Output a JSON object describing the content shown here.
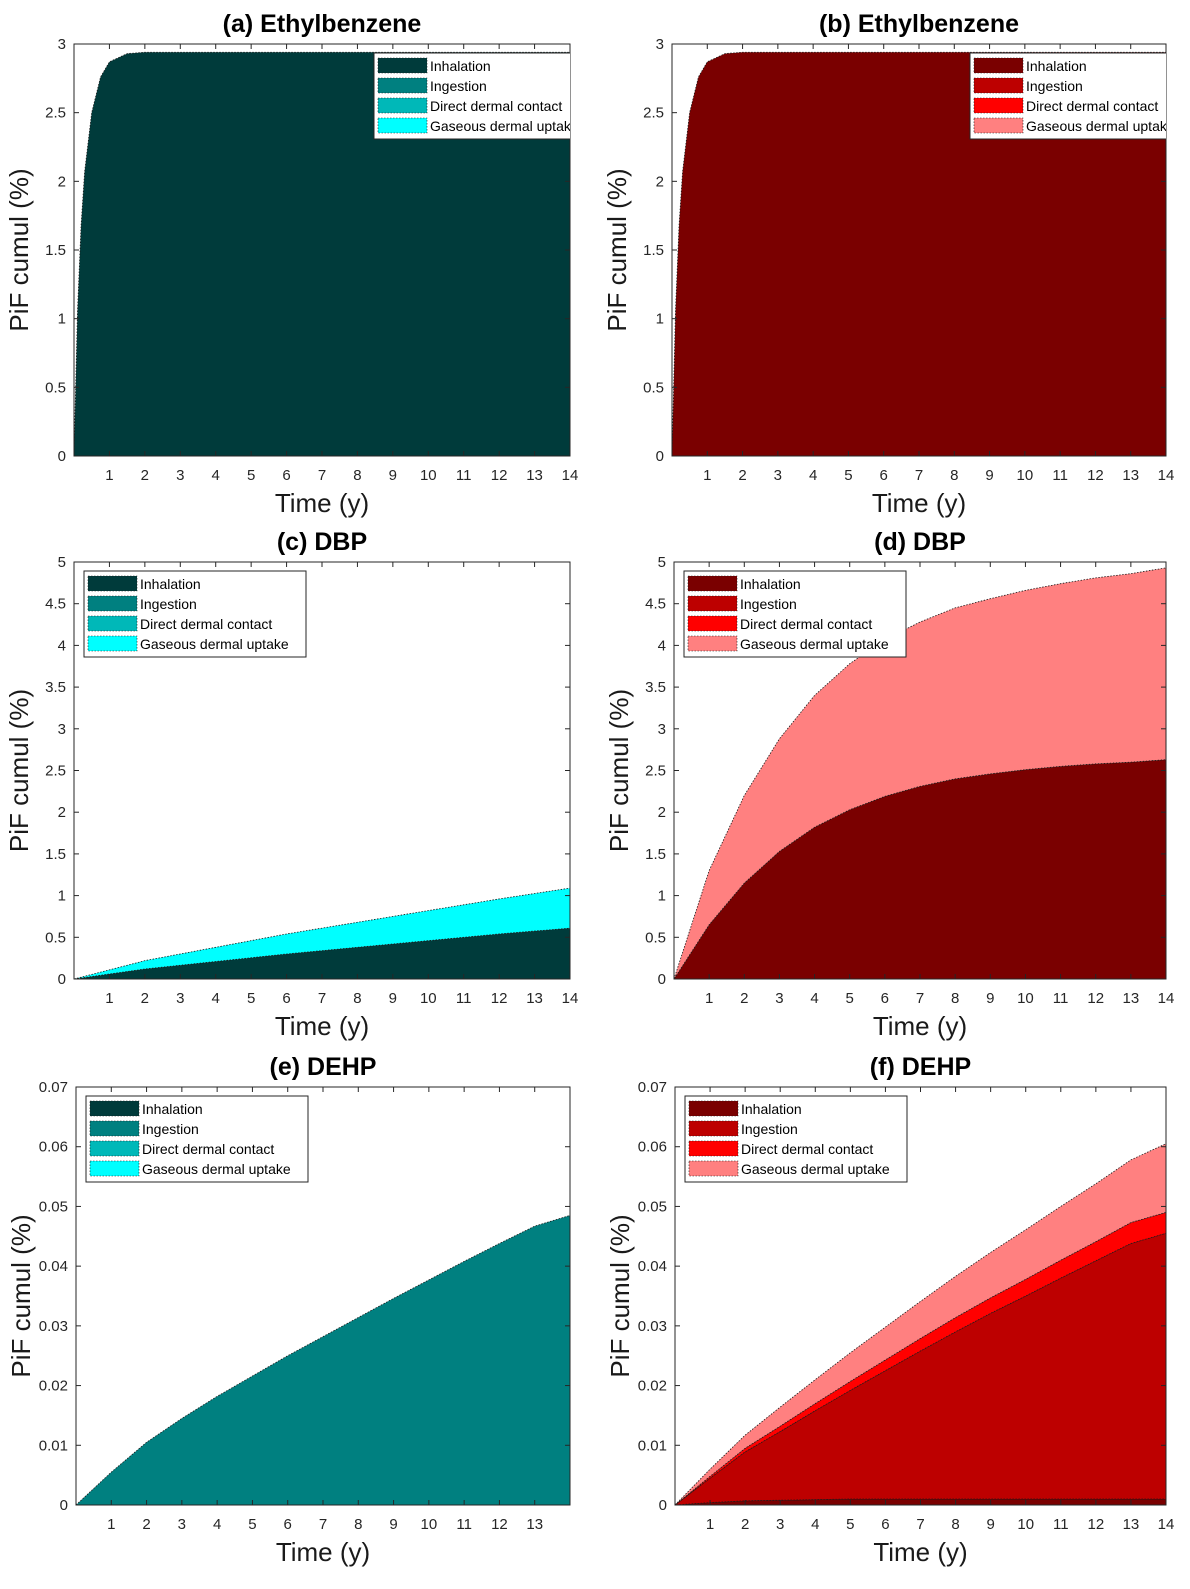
{
  "chart_data": [
    {
      "type": "area",
      "title": "(a)  Ethylbenzene",
      "xlabel": "Time (y)",
      "ylabel": "PiF cumul (%)",
      "xlim": [
        0,
        14
      ],
      "ylim": [
        0,
        3
      ],
      "xticks": [
        "1",
        "2",
        "3",
        "4",
        "5",
        "6",
        "7",
        "8",
        "9",
        "10",
        "11",
        "12",
        "13",
        "14"
      ],
      "yticks": [
        "0",
        "0.5",
        "1",
        "1.5",
        "2",
        "2.5",
        "3"
      ],
      "legend_position": "top-right",
      "stacked": true,
      "x": [
        0,
        0.1,
        0.2,
        0.3,
        0.5,
        0.75,
        1,
        1.5,
        2,
        3,
        5,
        14
      ],
      "series": [
        {
          "name": "Inhalation",
          "color": "#003b3b",
          "values": [
            0,
            1.06,
            1.68,
            2.07,
            2.5,
            2.76,
            2.87,
            2.93,
            2.94,
            2.94,
            2.94,
            2.94
          ]
        },
        {
          "name": "Ingestion",
          "color": "#008080",
          "values": [
            0,
            0,
            0,
            0,
            0,
            0,
            0,
            0,
            0,
            0,
            0,
            0
          ]
        },
        {
          "name": "Direct dermal contact",
          "color": "#00b8b8",
          "values": [
            0,
            0,
            0,
            0,
            0,
            0,
            0,
            0,
            0,
            0,
            0,
            0
          ]
        },
        {
          "name": "Gaseous dermal uptake",
          "color": "#00ffff",
          "values": [
            0,
            0,
            0,
            0,
            0,
            0,
            0,
            0,
            0,
            0,
            0,
            0
          ]
        }
      ]
    },
    {
      "type": "area",
      "title": "(b)  Ethylbenzene",
      "xlabel": "Time (y)",
      "ylabel": "PiF cumul (%)",
      "xlim": [
        0,
        14
      ],
      "ylim": [
        0,
        3
      ],
      "xticks": [
        "1",
        "2",
        "3",
        "4",
        "5",
        "6",
        "7",
        "8",
        "9",
        "10",
        "11",
        "12",
        "13",
        "14"
      ],
      "yticks": [
        "0",
        "0.5",
        "1",
        "1.5",
        "2",
        "2.5",
        "3"
      ],
      "legend_position": "top-right",
      "stacked": true,
      "x": [
        0,
        0.1,
        0.2,
        0.3,
        0.5,
        0.75,
        1,
        1.5,
        2,
        3,
        5,
        14
      ],
      "series": [
        {
          "name": "Inhalation",
          "color": "#7a0000",
          "values": [
            0,
            1.06,
            1.68,
            2.07,
            2.5,
            2.76,
            2.87,
            2.93,
            2.94,
            2.94,
            2.94,
            2.94
          ]
        },
        {
          "name": "Ingestion",
          "color": "#bd0000",
          "values": [
            0,
            0,
            0,
            0,
            0,
            0,
            0,
            0,
            0,
            0,
            0,
            0
          ]
        },
        {
          "name": "Direct dermal contact",
          "color": "#ff0000",
          "values": [
            0,
            0,
            0,
            0,
            0,
            0,
            0,
            0,
            0,
            0,
            0,
            0
          ]
        },
        {
          "name": "Gaseous dermal uptake",
          "color": "#ff8080",
          "values": [
            0,
            0,
            0,
            0,
            0,
            0,
            0,
            0,
            0,
            0,
            0,
            0
          ]
        }
      ]
    },
    {
      "type": "area",
      "title": "(c)  DBP",
      "xlabel": "Time (y)",
      "ylabel": "PiF cumul (%)",
      "xlim": [
        0,
        14
      ],
      "ylim": [
        0,
        5
      ],
      "xticks": [
        "1",
        "2",
        "3",
        "4",
        "5",
        "6",
        "7",
        "8",
        "9",
        "10",
        "11",
        "12",
        "13",
        "14"
      ],
      "yticks": [
        "0",
        "0.5",
        "1",
        "1.5",
        "2",
        "2.5",
        "3",
        "3.5",
        "4",
        "4.5",
        "5"
      ],
      "legend_position": "top-left",
      "stacked": true,
      "x": [
        0,
        2,
        4,
        6,
        8,
        10,
        12,
        14
      ],
      "series": [
        {
          "name": "Inhalation",
          "color": "#003b3b",
          "values": [
            0,
            0.12,
            0.21,
            0.3,
            0.38,
            0.46,
            0.54,
            0.61
          ]
        },
        {
          "name": "Ingestion",
          "color": "#008080",
          "values": [
            0,
            0,
            0,
            0,
            0,
            0,
            0,
            0
          ]
        },
        {
          "name": "Direct dermal contact",
          "color": "#00b8b8",
          "values": [
            0,
            0,
            0,
            0,
            0,
            0,
            0,
            0
          ]
        },
        {
          "name": "Gaseous dermal uptake",
          "color": "#00ffff",
          "values": [
            0,
            0.1,
            0.17,
            0.24,
            0.3,
            0.36,
            0.42,
            0.48
          ]
        }
      ]
    },
    {
      "type": "area",
      "title": "(d)  DBP",
      "xlabel": "Time (y)",
      "ylabel": "PiF cumul (%)",
      "xlim": [
        0,
        14
      ],
      "ylim": [
        0,
        5
      ],
      "xticks": [
        "1",
        "2",
        "3",
        "4",
        "5",
        "6",
        "7",
        "8",
        "9",
        "10",
        "11",
        "12",
        "13",
        "14"
      ],
      "yticks": [
        "0",
        "0.5",
        "1",
        "1.5",
        "2",
        "2.5",
        "3",
        "3.5",
        "4",
        "4.5",
        "5"
      ],
      "legend_position": "top-left",
      "stacked": true,
      "x": [
        0,
        1,
        2,
        3,
        4,
        5,
        6,
        7,
        8,
        9,
        10,
        11,
        12,
        13,
        14
      ],
      "series": [
        {
          "name": "Inhalation",
          "color": "#7a0000",
          "values": [
            0,
            0.65,
            1.15,
            1.53,
            1.82,
            2.03,
            2.19,
            2.31,
            2.4,
            2.46,
            2.51,
            2.55,
            2.58,
            2.6,
            2.63
          ]
        },
        {
          "name": "Ingestion",
          "color": "#bd0000",
          "values": [
            0,
            0,
            0,
            0,
            0,
            0,
            0,
            0,
            0,
            0,
            0,
            0,
            0,
            0,
            0
          ]
        },
        {
          "name": "Direct dermal contact",
          "color": "#ff0000",
          "values": [
            0,
            0,
            0,
            0,
            0,
            0,
            0,
            0,
            0,
            0,
            0,
            0,
            0,
            0,
            0
          ]
        },
        {
          "name": "Gaseous dermal uptake",
          "color": "#ff8080",
          "values": [
            0,
            0.65,
            1.05,
            1.35,
            1.58,
            1.75,
            1.88,
            1.97,
            2.05,
            2.1,
            2.15,
            2.19,
            2.23,
            2.26,
            2.3
          ]
        }
      ]
    },
    {
      "type": "area",
      "title": "(e)  DEHP",
      "xlabel": "Time (y)",
      "ylabel": "PiF cumul (%)",
      "xlim": [
        0,
        14
      ],
      "ylim": [
        0,
        0.07
      ],
      "xticks": [
        "1",
        "2",
        "3",
        "4",
        "5",
        "6",
        "7",
        "8",
        "9",
        "10",
        "11",
        "12",
        "13"
      ],
      "yticks": [
        "0",
        "0.01",
        "0.02",
        "0.03",
        "0.04",
        "0.05",
        "0.06",
        "0.07"
      ],
      "legend_position": "top-left",
      "stacked": true,
      "x": [
        0,
        1,
        2,
        3,
        4,
        5,
        6,
        7,
        8,
        9,
        10,
        11,
        12,
        13,
        14
      ],
      "series": [
        {
          "name": "Inhalation",
          "color": "#003b3b",
          "values": [
            0,
            0,
            0,
            0,
            0,
            0,
            0,
            0,
            0,
            0,
            0,
            0,
            0,
            0,
            0
          ]
        },
        {
          "name": "Ingestion",
          "color": "#008080",
          "values": [
            0,
            0.0055,
            0.0105,
            0.0145,
            0.0182,
            0.0216,
            0.025,
            0.0282,
            0.0314,
            0.0346,
            0.0377,
            0.0408,
            0.0438,
            0.0467,
            0.0485
          ]
        },
        {
          "name": "Direct dermal contact",
          "color": "#00b8b8",
          "values": [
            0,
            0,
            0,
            0,
            0,
            0,
            0,
            0,
            0,
            0,
            0,
            0,
            0,
            0,
            0
          ]
        },
        {
          "name": "Gaseous dermal uptake",
          "color": "#00ffff",
          "values": [
            0,
            0,
            0,
            0,
            0,
            0,
            0,
            0,
            0,
            0,
            0,
            0,
            0,
            0,
            0
          ]
        }
      ]
    },
    {
      "type": "area",
      "title": "(f)  DEHP",
      "xlabel": "Time (y)",
      "ylabel": "PiF cumul (%)",
      "xlim": [
        0,
        14
      ],
      "ylim": [
        0,
        0.07
      ],
      "xticks": [
        "1",
        "2",
        "3",
        "4",
        "5",
        "6",
        "7",
        "8",
        "9",
        "10",
        "11",
        "12",
        "13",
        "14"
      ],
      "yticks": [
        "0",
        "0.01",
        "0.02",
        "0.03",
        "0.04",
        "0.05",
        "0.06",
        "0.07"
      ],
      "legend_position": "top-left",
      "stacked": true,
      "x": [
        0,
        1,
        2,
        3,
        4,
        5,
        6,
        7,
        8,
        9,
        10,
        11,
        12,
        13,
        14
      ],
      "series": [
        {
          "name": "Inhalation",
          "color": "#7a0000",
          "values": [
            0,
            0.0004,
            0.0007,
            0.0008,
            0.0009,
            0.001,
            0.001,
            0.001,
            0.001,
            0.001,
            0.001,
            0.001,
            0.001,
            0.001,
            0.001
          ]
        },
        {
          "name": "Ingestion",
          "color": "#bd0000",
          "values": [
            0,
            0.0041,
            0.0082,
            0.0115,
            0.0149,
            0.0182,
            0.0215,
            0.0248,
            0.028,
            0.0311,
            0.034,
            0.037,
            0.0399,
            0.0428,
            0.0445
          ]
        },
        {
          "name": "Direct dermal contact",
          "color": "#ff0000",
          "values": [
            0,
            0.0003,
            0.0006,
            0.0009,
            0.0012,
            0.0015,
            0.0018,
            0.0021,
            0.0024,
            0.0026,
            0.0028,
            0.003,
            0.0032,
            0.0035,
            0.0035
          ]
        },
        {
          "name": "Gaseous dermal uptake",
          "color": "#ff8080",
          "values": [
            0,
            0.0012,
            0.0022,
            0.0032,
            0.004,
            0.0048,
            0.0055,
            0.0062,
            0.0069,
            0.0076,
            0.0083,
            0.009,
            0.0097,
            0.0105,
            0.0115
          ]
        }
      ]
    }
  ]
}
